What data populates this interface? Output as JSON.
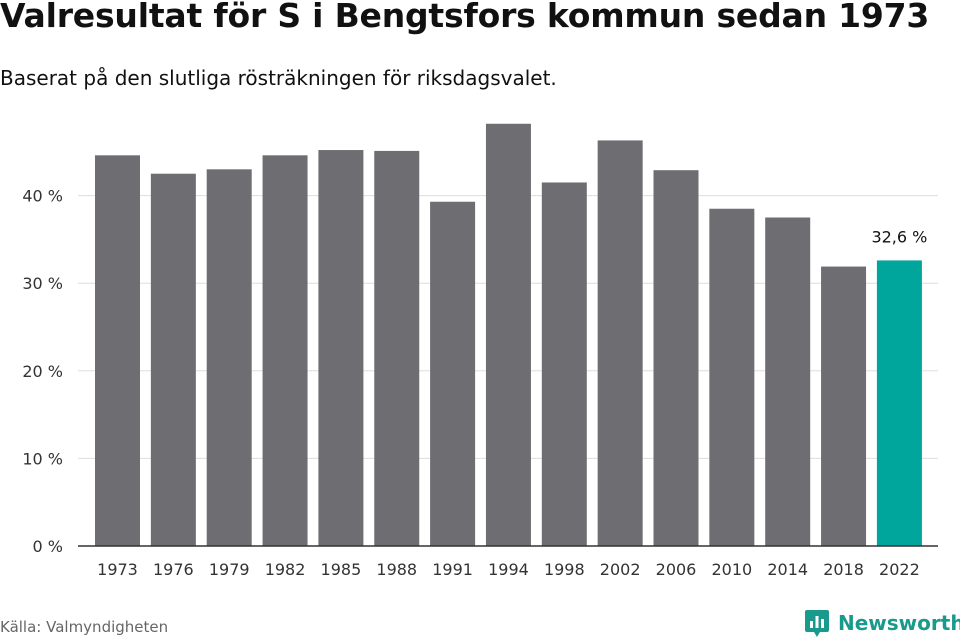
{
  "title": "Valresultat för S i Bengtsfors kommun sedan 1973",
  "subtitle": "Baserat på den slutliga rösträkningen för riksdagsvalet.",
  "source": "Källa: Valmyndigheten",
  "brand": {
    "name": "Newsworthy",
    "icon": "newsworthy-logo-icon",
    "color": "#1a9a8c"
  },
  "chart_data": {
    "type": "bar",
    "title": "Valresultat för S i Bengtsfors kommun sedan 1973",
    "categories": [
      "1973",
      "1976",
      "1979",
      "1982",
      "1985",
      "1988",
      "1991",
      "1994",
      "1998",
      "2002",
      "2006",
      "2010",
      "2014",
      "2018",
      "2022"
    ],
    "values": [
      44.6,
      42.5,
      43.0,
      44.6,
      45.2,
      45.1,
      39.3,
      48.2,
      41.5,
      46.3,
      42.9,
      38.5,
      37.5,
      31.9,
      32.6
    ],
    "ylim": [
      0,
      50
    ],
    "yticks": [
      0,
      10,
      20,
      30,
      40
    ],
    "ytick_labels": [
      "0 %",
      "10 %",
      "20 %",
      "30 %",
      "40 %"
    ],
    "xlabel": "",
    "ylabel": "",
    "grid": true,
    "colors": {
      "bar": "#6e6d72",
      "highlight": "#00a59b",
      "grid": "#dddddd",
      "axis": "#333333"
    },
    "highlight_index": 14,
    "annotations": [
      {
        "index": 14,
        "text": "32,6 %"
      }
    ]
  }
}
